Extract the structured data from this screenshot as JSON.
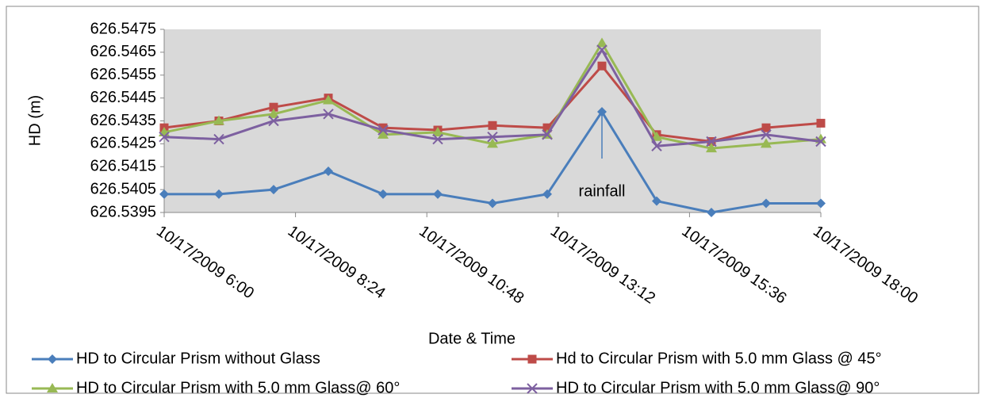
{
  "chart_data": {
    "type": "line",
    "x_label": "Date & Time",
    "y_label": "HD (m)",
    "annotation": "rainfall",
    "x": [
      "2009-10-17T06:00",
      "2009-10-17T07:00",
      "2009-10-17T08:00",
      "2009-10-17T09:00",
      "2009-10-17T10:00",
      "2009-10-17T11:00",
      "2009-10-17T12:00",
      "2009-10-17T13:00",
      "2009-10-17T14:00",
      "2009-10-17T15:00",
      "2009-10-17T16:00",
      "2009-10-17T17:00",
      "2009-10-17T18:00"
    ],
    "xlim": [
      "2009-10-17T06:00",
      "2009-10-17T18:00"
    ],
    "xticks": [
      {
        "value": "2009-10-17T06:00",
        "label": "10/17/2009 6:00"
      },
      {
        "value": "2009-10-17T08:24",
        "label": "10/17/2009 8:24"
      },
      {
        "value": "2009-10-17T10:48",
        "label": "10/17/2009 10:48"
      },
      {
        "value": "2009-10-17T13:12",
        "label": "10/17/2009 13:12"
      },
      {
        "value": "2009-10-17T15:36",
        "label": "10/17/2009 15:36"
      },
      {
        "value": "2009-10-17T18:00",
        "label": "10/17/2009 18:00"
      }
    ],
    "ylim": [
      626.5395,
      626.5475
    ],
    "yticks": [
      626.5395,
      626.5405,
      626.5415,
      626.5425,
      626.5435,
      626.5445,
      626.5455,
      626.5465,
      626.5475
    ],
    "grid": false,
    "series": [
      {
        "name": "HD to Circular Prism without Glass",
        "color": "#4a7ebb",
        "marker": "diamond",
        "values": [
          626.5403,
          626.5403,
          626.5405,
          626.5413,
          626.5403,
          626.5403,
          626.5399,
          626.5403,
          626.5439,
          626.54,
          626.5395,
          626.5399,
          626.5399
        ]
      },
      {
        "name": "Hd to Circular Prism  with 5.0 mm Glass @ 45°",
        "color": "#be4b48",
        "marker": "square",
        "values": [
          626.5432,
          626.5435,
          626.5441,
          626.5445,
          626.5432,
          626.5431,
          626.5433,
          626.5432,
          626.5459,
          626.5429,
          626.5426,
          626.5432,
          626.5434
        ]
      },
      {
        "name": "HD to Circular Prism  with 5.0 mm Glass@ 60°",
        "color": "#98b954",
        "marker": "triangle",
        "values": [
          626.543,
          626.5435,
          626.5438,
          626.5444,
          626.5429,
          626.543,
          626.5425,
          626.5429,
          626.5469,
          626.5428,
          626.5423,
          626.5425,
          626.5427
        ]
      },
      {
        "name": "HD to Circular Prism with 5.0 mm Glass@ 90°",
        "color": "#7d60a0",
        "marker": "x",
        "values": [
          626.5428,
          626.5427,
          626.5435,
          626.5438,
          626.5431,
          626.5427,
          626.5428,
          626.5429,
          626.5466,
          626.5424,
          626.5426,
          626.5429,
          626.5426
        ]
      }
    ]
  }
}
